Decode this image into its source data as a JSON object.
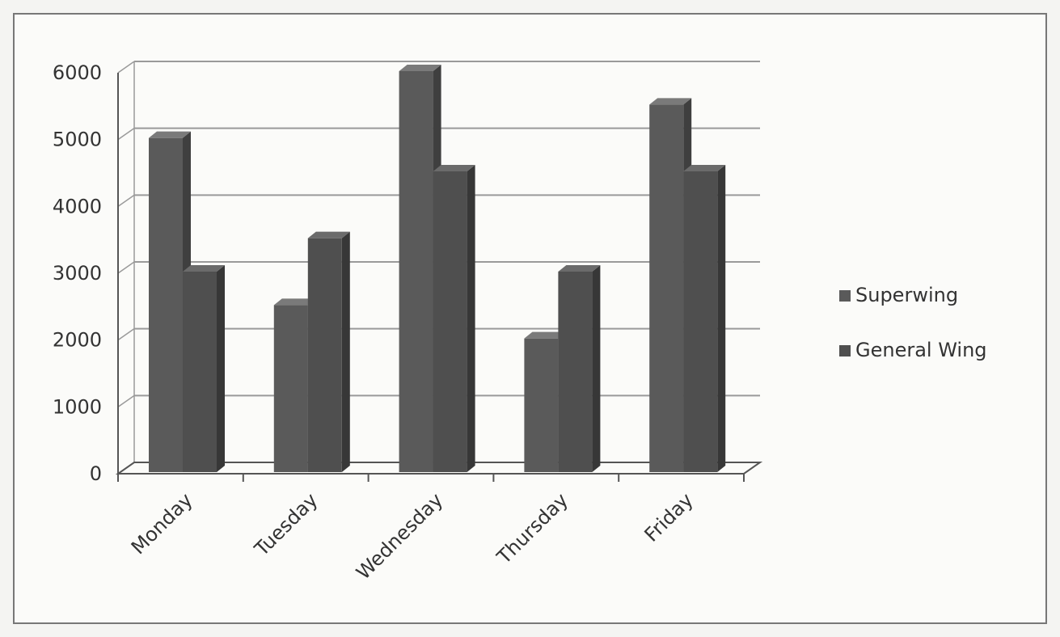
{
  "chart_data": {
    "type": "bar",
    "title": "",
    "xlabel": "",
    "ylabel": "",
    "categories": [
      "Monday",
      "Tuesday",
      "Wednesday",
      "Thursday",
      "Friday"
    ],
    "series": [
      {
        "name": "Superwing",
        "values": [
          5000,
          2500,
          6000,
          2000,
          5500
        ]
      },
      {
        "name": "General Wing",
        "values": [
          3000,
          3500,
          4500,
          3000,
          4500
        ]
      }
    ],
    "yticks": [
      "0",
      "1000",
      "2000",
      "3000",
      "4000",
      "5000",
      "6000"
    ],
    "ylim": [
      0,
      6000
    ],
    "grid": true,
    "legend": "right",
    "colors": {
      "superwing": "#5a5a5a",
      "general_wing": "#4f4f4f",
      "grid": "#9a9a9a",
      "axis": "#555555"
    }
  }
}
